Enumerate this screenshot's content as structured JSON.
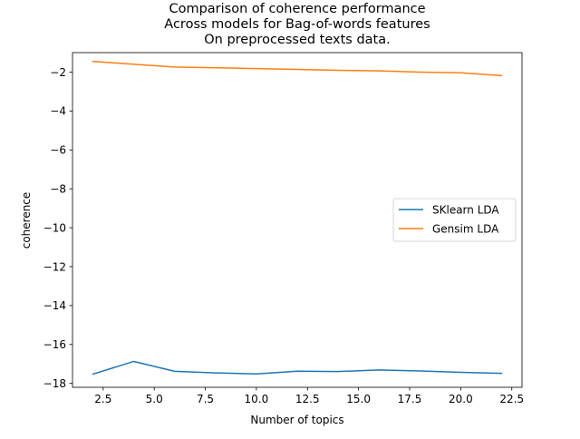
{
  "chart_data": {
    "type": "line",
    "title_lines": [
      "Comparison of coherence performance",
      "Across models for Bag-of-words features",
      "On preprocessed texts data."
    ],
    "xlabel": "Number of topics",
    "ylabel": "coherence",
    "xlim": [
      1.0,
      23.0
    ],
    "ylim": [
      -18.2,
      -1.0
    ],
    "x_ticks": [
      2.5,
      5.0,
      7.5,
      10.0,
      12.5,
      15.0,
      17.5,
      20.0,
      22.5
    ],
    "x_tick_labels": [
      "2.5",
      "5.0",
      "7.5",
      "10.0",
      "12.5",
      "15.0",
      "17.5",
      "20.0",
      "22.5"
    ],
    "y_ticks": [
      -2,
      -4,
      -6,
      -8,
      -10,
      -12,
      -14,
      -16,
      -18
    ],
    "y_tick_labels": [
      "−2",
      "−4",
      "−6",
      "−8",
      "−10",
      "−12",
      "−14",
      "−16",
      "−18"
    ],
    "legend_position": "center-right",
    "x": [
      2,
      4,
      6,
      8,
      10,
      12,
      14,
      16,
      18,
      20,
      22
    ],
    "series": [
      {
        "name": "SKlearn LDA",
        "color": "#1f77b4",
        "values": [
          -17.52,
          -16.87,
          -17.38,
          -17.46,
          -17.51,
          -17.37,
          -17.39,
          -17.31,
          -17.36,
          -17.43,
          -17.48
        ]
      },
      {
        "name": "Gensim LDA",
        "color": "#ff7f0e",
        "values": [
          -1.45,
          -1.6,
          -1.74,
          -1.78,
          -1.82,
          -1.86,
          -1.91,
          -1.94,
          -2.0,
          -2.04,
          -2.18
        ]
      }
    ],
    "grid": false
  }
}
